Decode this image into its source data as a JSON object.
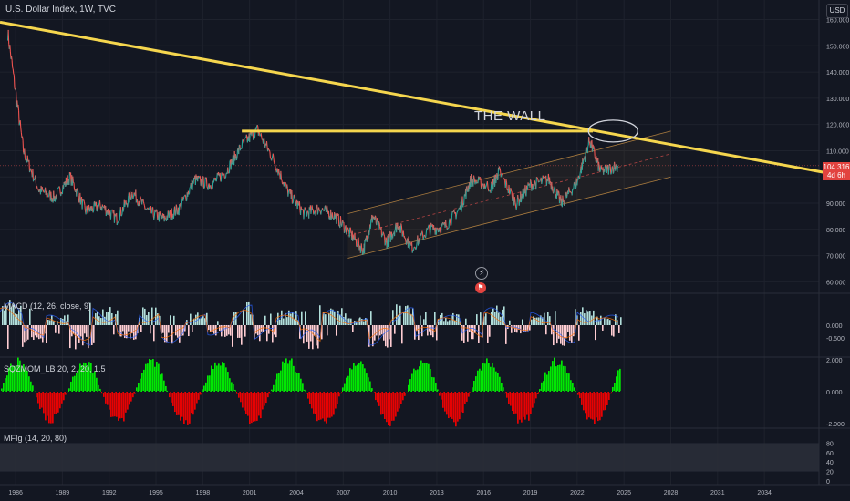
{
  "header": {
    "title": "U.S. Dollar Index, 1W, TVC",
    "currency": "USD"
  },
  "annotation": "THE WALL",
  "last_price": {
    "value": "104.316",
    "countdown": "4d 6h"
  },
  "icons": {
    "lightning": "lightning-icon",
    "flag": "flag-icon"
  },
  "colors": {
    "background": "#131722",
    "trendline": "#f5d64e",
    "channel": "#e8a54b",
    "up": "#26a69a",
    "down": "#ef5350",
    "macd_pos": "#b2dfdb",
    "macd_neg": "#ffcdd2",
    "sqz_pos": "#00ff00",
    "sqz_neg": "#ff0000",
    "price_tag": "#e2433f"
  },
  "panes": {
    "macd": {
      "label": "MACD (12, 26, close, 9)"
    },
    "sqzmom": {
      "label": "SQZMOM_LB 20, 2, 20, 1.5"
    },
    "mfi": {
      "label": "MFIg (14, 20, 80)"
    }
  },
  "chart_data": [
    {
      "type": "line",
      "title": "U.S. Dollar Index, 1W, TVC",
      "x": [
        1985.5,
        1986.5,
        1987.5,
        1988.5,
        1989.5,
        1990.5,
        1991.5,
        1992.5,
        1993.5,
        1994.5,
        1995.5,
        1996.5,
        1997.5,
        1998.5,
        1999.5,
        2000.5,
        2001.5,
        2002.5,
        2003.5,
        2004.5,
        2005.5,
        2006.5,
        2007.5,
        2008.3,
        2008.9,
        2009.8,
        2010.5,
        2011.4,
        2012.5,
        2013.5,
        2014.5,
        2015.2,
        2016.5,
        2017.0,
        2018.1,
        2019.0,
        2020.2,
        2021.0,
        2022.0,
        2022.8,
        2023.5,
        2024.6
      ],
      "values": [
        155,
        110,
        95,
        92,
        100,
        87,
        89,
        84,
        94,
        87,
        84,
        88,
        99,
        97,
        102,
        112,
        118,
        107,
        94,
        86,
        88,
        85,
        78,
        72,
        85,
        75,
        82,
        73,
        80,
        81,
        88,
        99,
        96,
        102,
        90,
        97,
        99,
        90,
        98,
        114,
        102,
        104.316
      ],
      "y_axis_ticks": [
        "160.000",
        "150.000",
        "140.000",
        "130.000",
        "120.000",
        "110.000",
        "100.000",
        "90.000",
        "80.000",
        "70.000",
        "60.000"
      ],
      "ylim": [
        57,
        164
      ],
      "x_axis_ticks": [
        "1986",
        "1989",
        "1992",
        "1995",
        "1998",
        "2001",
        "2004",
        "2007",
        "2010",
        "2013",
        "2016",
        "2019",
        "2022",
        "2025",
        "2028",
        "2031",
        "2034"
      ],
      "xlim": [
        1985.0,
        2037.5
      ],
      "annotations": {
        "trendline": [
          [
            1985.0,
            159
          ],
          [
            2038.5,
            101
          ]
        ],
        "resistance": {
          "y": 117.5,
          "x": [
            2000.5,
            2023.0
          ]
        },
        "channel_upper": [
          [
            2007.3,
            86
          ],
          [
            2028.0,
            117.5
          ]
        ],
        "channel_lower": [
          [
            2007.3,
            69
          ],
          [
            2028.0,
            100
          ]
        ],
        "channel_mid": [
          [
            2007.3,
            77.5
          ],
          [
            2028.0,
            108.8
          ]
        ],
        "ellipse_center": [
          2024.3,
          117.5
        ],
        "text": "THE WALL",
        "last_price": 104.316
      }
    },
    {
      "type": "bar",
      "title": "MACD (12, 26, close, 9)",
      "y_axis_ticks": [
        "0.000",
        "-0.500"
      ],
      "ylim": [
        -1.2,
        1.2
      ],
      "x_range": [
        1985.0,
        2024.8
      ],
      "series": [
        {
          "name": "MACD",
          "values": [
            0.9,
            -0.6,
            0.4,
            -0.8,
            0.7,
            -0.5,
            0.6,
            -0.7,
            0.5,
            -0.4,
            0.8,
            -0.6,
            0.5,
            -0.9,
            0.6,
            0.3,
            -0.8,
            0.7,
            -0.5,
            0.4,
            -0.6,
            0.7,
            -0.3,
            0.5,
            -0.7,
            0.6,
            0.4
          ]
        },
        {
          "name": "Signal",
          "values": [
            0.7,
            -0.4,
            0.3,
            -0.6,
            0.5,
            -0.4,
            0.5,
            -0.5,
            0.4,
            -0.3,
            0.6,
            -0.5,
            0.4,
            -0.7,
            0.5,
            0.2,
            -0.6,
            0.5,
            -0.4,
            0.3,
            -0.5,
            0.5,
            -0.2,
            0.4,
            -0.5,
            0.5,
            0.3
          ]
        }
      ]
    },
    {
      "type": "bar",
      "title": "SQZMOM_LB 20, 2, 20, 1.5",
      "y_axis_ticks": [
        "2.000",
        "0.000",
        "-2.000"
      ],
      "ylim": [
        -2.5,
        2.5
      ],
      "x_range": [
        1985.0,
        2024.8
      ]
    },
    {
      "type": "area",
      "title": "MFIg (14, 20, 80)",
      "y_axis_ticks": [
        "80",
        "60",
        "40",
        "20",
        "0"
      ],
      "ylim": [
        0,
        100
      ],
      "bands": [
        20,
        80
      ]
    }
  ]
}
